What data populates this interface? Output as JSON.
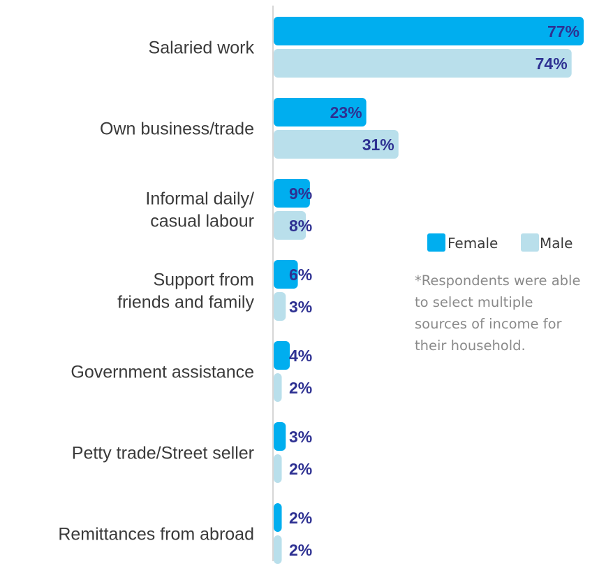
{
  "chart_data": {
    "type": "bar",
    "orientation": "horizontal",
    "categories": [
      [
        "Salaried work"
      ],
      [
        "Own business/trade"
      ],
      [
        "Informal daily/",
        "casual labour"
      ],
      [
        "Support from",
        "friends and family"
      ],
      [
        "Government assistance"
      ],
      [
        "Petty trade/Street seller"
      ],
      [
        "Remittances from abroad"
      ]
    ],
    "series": [
      {
        "name": "Female",
        "color": "#00aeef",
        "values": [
          77,
          23,
          9,
          6,
          4,
          3,
          2
        ]
      },
      {
        "name": "Male",
        "color": "#b9dfeb",
        "values": [
          74,
          31,
          8,
          3,
          2,
          2,
          2
        ]
      }
    ],
    "value_suffix": "%",
    "legend_position": "right",
    "grid": false
  },
  "note": "*Respondents were able to select multiple sources of income for their household."
}
